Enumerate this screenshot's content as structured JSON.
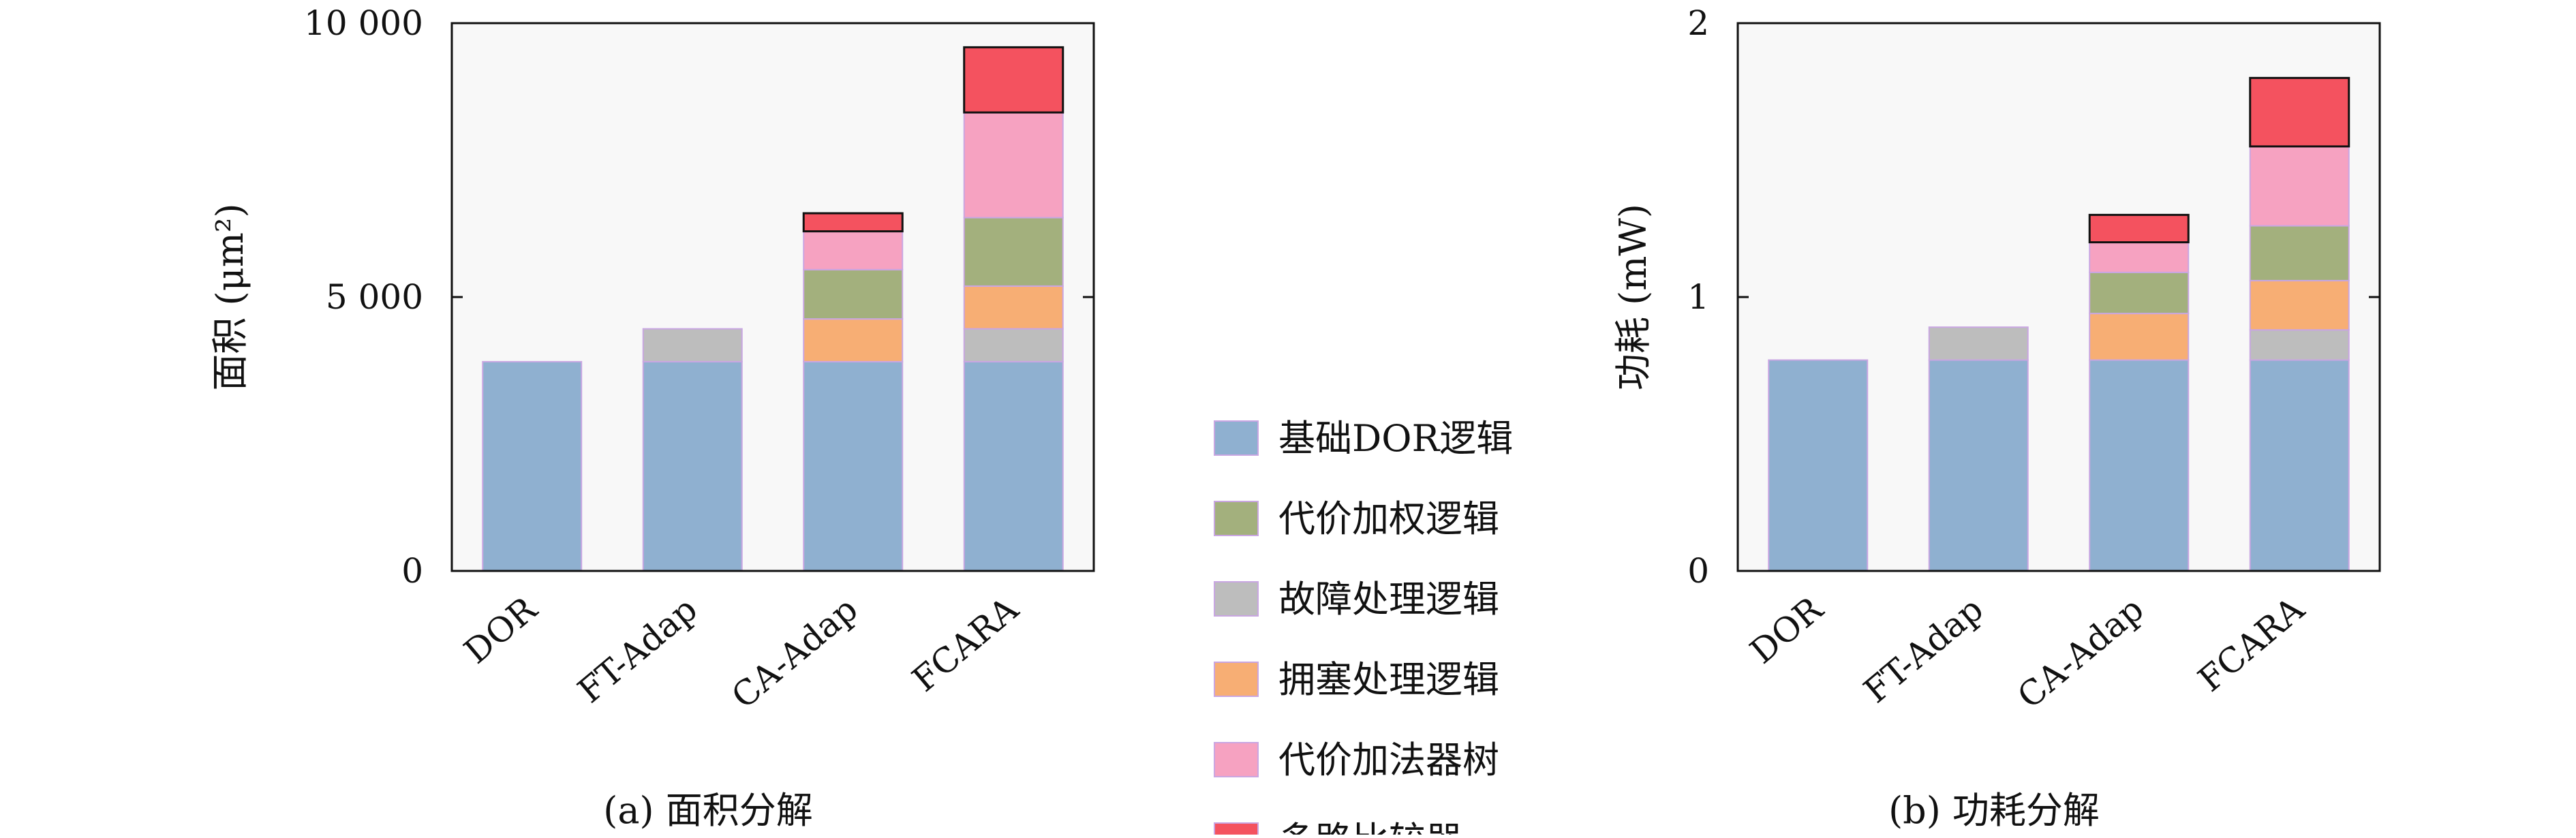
{
  "colors": {
    "plot_bg": "#f8f8f8",
    "axis": "#111111",
    "segment_stroke": "#c9a6e2",
    "top_stroke": "#111111"
  },
  "legend": {
    "items": [
      {
        "label": "基础DOR逻辑",
        "color": "#8fb0d0"
      },
      {
        "label": "代价加权逻辑",
        "color": "#a3b07d"
      },
      {
        "label": "故障处理逻辑",
        "color": "#bdbdbd"
      },
      {
        "label": "拥塞处理逻辑",
        "color": "#f7ae74"
      },
      {
        "label": "代价加法器树",
        "color": "#f6a2c1"
      },
      {
        "label": "多路比较器",
        "color": "#f4525f"
      }
    ]
  },
  "chart_data": [
    {
      "type": "bar",
      "stacked": true,
      "caption": "(a) 面积分解",
      "ylabel": "面积 (μm²)",
      "ylim": [
        0,
        10000
      ],
      "yticks": [
        0,
        5000,
        10000
      ],
      "ytick_labels": [
        "0",
        "5 000",
        "10 000"
      ],
      "categories": [
        "DOR",
        "FT-Adap",
        "CA-Adap",
        "FCARA"
      ],
      "series": [
        {
          "name": "基础DOR逻辑",
          "values": [
            3820,
            3820,
            3820,
            3820
          ]
        },
        {
          "name": "故障处理逻辑",
          "values": [
            0,
            600,
            0,
            600
          ]
        },
        {
          "name": "拥塞处理逻辑",
          "values": [
            0,
            0,
            780,
            780
          ]
        },
        {
          "name": "代价加权逻辑",
          "values": [
            0,
            0,
            900,
            1250
          ]
        },
        {
          "name": "代价加法器树",
          "values": [
            0,
            0,
            700,
            1920
          ]
        },
        {
          "name": "多路比较器",
          "values": [
            0,
            0,
            330,
            1190
          ]
        }
      ]
    },
    {
      "type": "bar",
      "stacked": true,
      "caption": "(b) 功耗分解",
      "ylabel": "功耗 (mW)",
      "ylim": [
        0,
        2
      ],
      "yticks": [
        0,
        1,
        2
      ],
      "ytick_labels": [
        "0",
        "1",
        "2"
      ],
      "categories": [
        "DOR",
        "FT-Adap",
        "CA-Adap",
        "FCARA"
      ],
      "series": [
        {
          "name": "基础DOR逻辑",
          "values": [
            0.77,
            0.77,
            0.77,
            0.77
          ]
        },
        {
          "name": "故障处理逻辑",
          "values": [
            0,
            0.12,
            0,
            0.11
          ]
        },
        {
          "name": "拥塞处理逻辑",
          "values": [
            0,
            0,
            0.17,
            0.18
          ]
        },
        {
          "name": "代价加权逻辑",
          "values": [
            0,
            0,
            0.15,
            0.2
          ]
        },
        {
          "name": "代价加法器树",
          "values": [
            0,
            0,
            0.11,
            0.29
          ]
        },
        {
          "name": "多路比较器",
          "values": [
            0,
            0,
            0.1,
            0.25
          ]
        }
      ]
    }
  ]
}
